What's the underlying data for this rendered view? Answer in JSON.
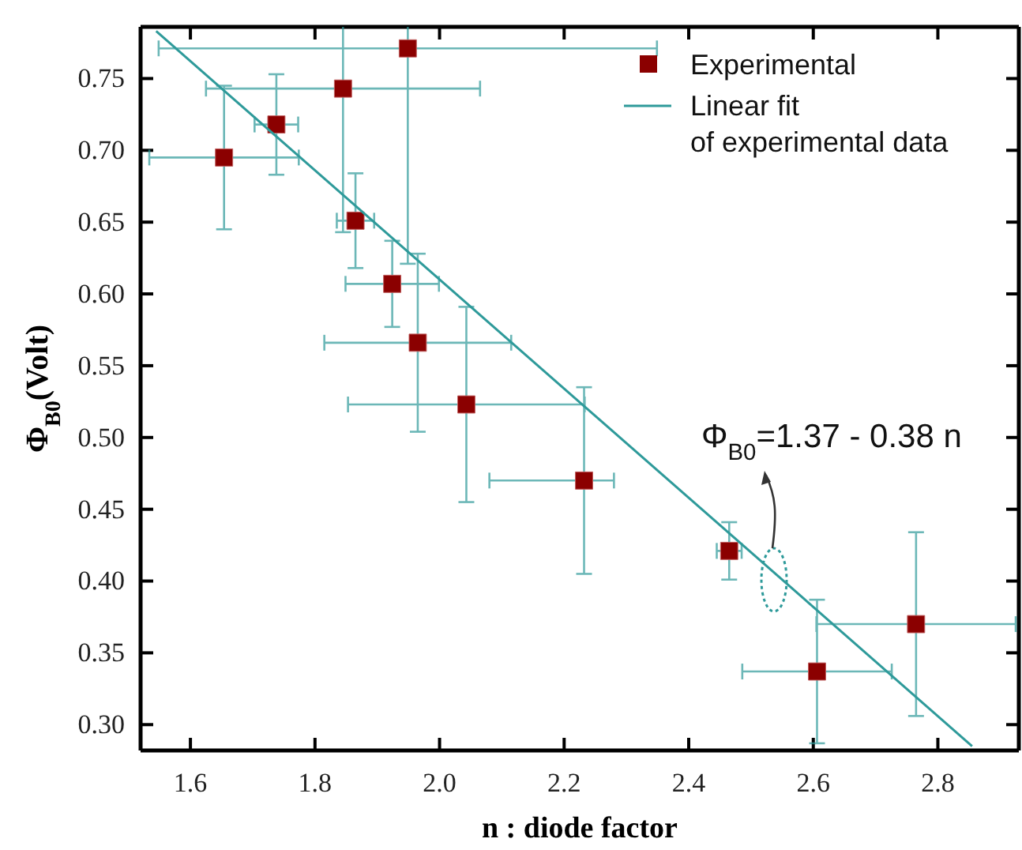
{
  "chart_data": {
    "type": "scatter",
    "xlabel": "n : diode factor",
    "ylabel": "Φ$_{B0}$(Volt)",
    "xlim": [
      1.52,
      2.93
    ],
    "ylim": [
      0.282,
      0.786
    ],
    "xticks": [
      1.6,
      1.8,
      {
        "value": 2.0,
        "label": "2.0"
      },
      2.2,
      2.4,
      2.6,
      2.8
    ],
    "yticks": [
      {
        "value": 0.3,
        "label": "0.30"
      },
      0.35,
      {
        "value": 0.4,
        "label": "0.40"
      },
      0.45,
      {
        "value": 0.5,
        "label": "0.50"
      },
      0.55,
      {
        "value": 0.6,
        "label": "0.60"
      },
      0.65,
      {
        "value": 0.7,
        "label": "0.70"
      },
      0.75
    ],
    "grid": false,
    "legend": "top right",
    "series": [
      {
        "name": "Experimental",
        "marker": "square",
        "color": "#8b0000",
        "x": [
          1.654,
          1.738,
          1.845,
          1.949,
          1.865,
          1.924,
          1.965,
          2.043,
          2.232,
          2.465,
          2.606,
          2.765
        ],
        "values": [
          0.695,
          0.718,
          0.743,
          0.771,
          0.651,
          0.607,
          0.566,
          0.523,
          0.47,
          0.421,
          0.337,
          0.37
        ],
        "errors": [
          0.05,
          0.035,
          0.1,
          0.15,
          0.033,
          0.03,
          0.062,
          0.068,
          0.065,
          0.02,
          0.05,
          0.064
        ],
        "xerrors": [
          0.12,
          0.035,
          0.22,
          0.4,
          0.03,
          0.075,
          0.15,
          0.19,
          [
            2.08,
            2.28
          ],
          0.02,
          0.12,
          0.16
        ]
      },
      {
        "name": "Linear fit of experimental data",
        "type": "line",
        "marker": "none",
        "line_style": "solid",
        "color": "#2e9a9a",
        "x": [
          1.545,
          2.855
        ],
        "values": [
          0.783,
          0.285
        ]
      }
    ],
    "annotations": [
      "Φ$_{B0}$=1.37 - 0.38 n"
    ]
  }
}
